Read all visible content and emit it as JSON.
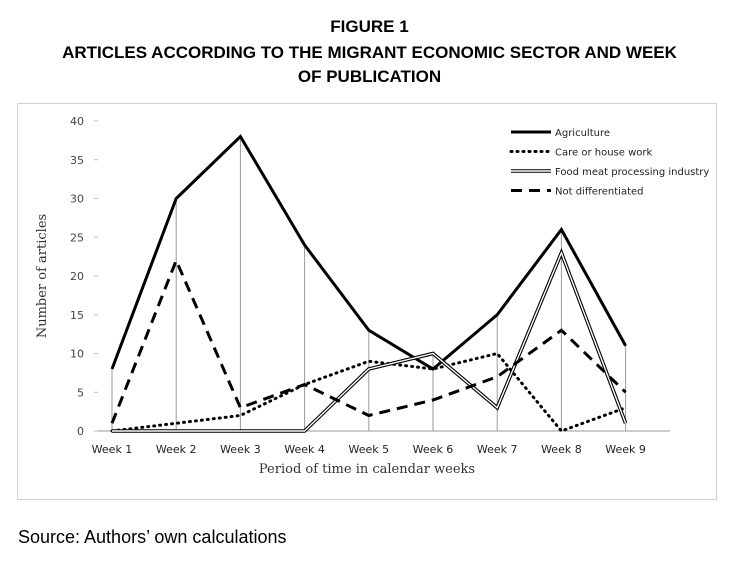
{
  "header": {
    "figure_number": "FIGURE 1",
    "title_line1": "ARTICLES ACCORDING TO THE MIGRANT ECONOMIC SECTOR AND WEEK",
    "title_line2": "OF PUBLICATION"
  },
  "source": "Source: Authors’ own calculations",
  "chart_data": {
    "type": "line",
    "categories": [
      "Week 1",
      "Week 2",
      "Week 3",
      "Week 4",
      "Week 5",
      "Week 6",
      "Week 7",
      "Week 8",
      "Week 9"
    ],
    "xlabel": "Period of time in calendar weeks",
    "ylabel": "Number of articles",
    "ylim": [
      0,
      40
    ],
    "yticks": [
      0,
      5,
      10,
      15,
      20,
      25,
      30,
      35,
      40
    ],
    "grid": "vertical drop lines at each week",
    "legend_position": "top-right",
    "series": [
      {
        "name": "Agriculture",
        "style": "thick-solid",
        "values": [
          8,
          30,
          38,
          24,
          13,
          8,
          15,
          26,
          11
        ]
      },
      {
        "name": "Care or house work",
        "style": "dotted",
        "values": [
          0,
          1,
          2,
          6,
          9,
          8,
          10,
          0,
          3
        ]
      },
      {
        "name": "Food meat processing industry",
        "style": "double-line",
        "values": [
          0,
          0,
          0,
          0,
          8,
          10,
          3,
          23,
          1
        ]
      },
      {
        "name": "Not differentiated",
        "style": "dashed",
        "values": [
          1,
          22,
          3,
          6,
          2,
          4,
          7,
          13,
          5
        ]
      }
    ],
    "colors": {
      "lines": "#000000",
      "droplines": "#9a9a9a"
    }
  }
}
